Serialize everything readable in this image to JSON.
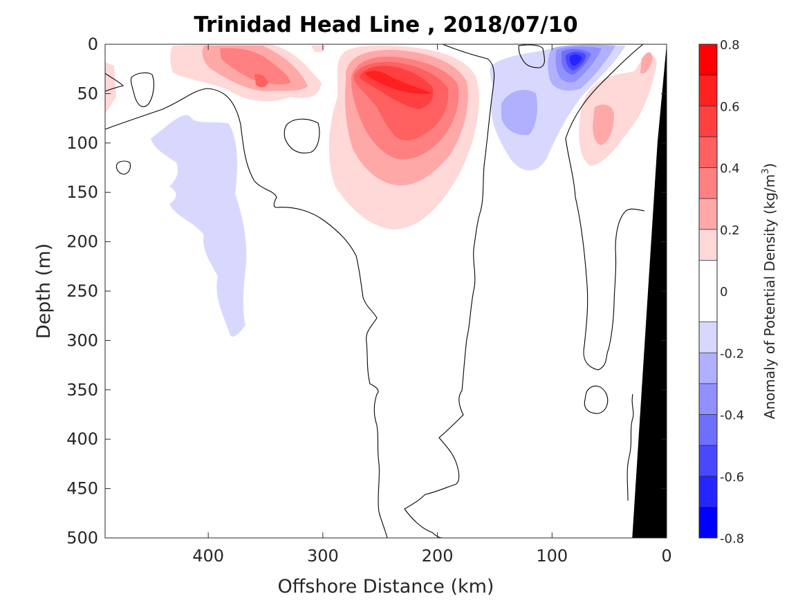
{
  "chart_data": {
    "type": "heatmap",
    "title": "Trinidad Head Line , 2018/07/10",
    "xlabel": "Offshore Distance (km)",
    "ylabel": "Depth (m)",
    "xlim": [
      490,
      0
    ],
    "ylim": [
      0,
      500
    ],
    "x_reversed": true,
    "y_reversed": true,
    "xticks": [
      "400",
      "300",
      "200",
      "100",
      "0"
    ],
    "yticks": [
      "0",
      "50",
      "100",
      "150",
      "200",
      "250",
      "300",
      "350",
      "400",
      "450",
      "500"
    ],
    "colorbar": {
      "label": "Anomaly of Potential Density (kg/m",
      "label_superscript": "3",
      "label_close": ")",
      "ticks": [
        "0.8",
        "0.6",
        "0.4",
        "0.2",
        "0",
        "-0.2",
        "-0.4",
        "-0.6",
        "-0.8"
      ],
      "clim": [
        -0.8,
        0.8
      ],
      "levels": [
        {
          "min": 0.7,
          "max": 0.8,
          "color": "#ff0000"
        },
        {
          "min": 0.6,
          "max": 0.7,
          "color": "#ff2020"
        },
        {
          "min": 0.5,
          "max": 0.6,
          "color": "#ff4040"
        },
        {
          "min": 0.4,
          "max": 0.5,
          "color": "#ff6060"
        },
        {
          "min": 0.3,
          "max": 0.4,
          "color": "#ff8080"
        },
        {
          "min": 0.2,
          "max": 0.3,
          "color": "#ffa8a8"
        },
        {
          "min": 0.1,
          "max": 0.2,
          "color": "#ffd8d8"
        },
        {
          "min": -0.1,
          "max": 0.1,
          "color": "#ffffff"
        },
        {
          "min": -0.2,
          "max": -0.1,
          "color": "#d8d8ff"
        },
        {
          "min": -0.3,
          "max": -0.2,
          "color": "#b0b0ff"
        },
        {
          "min": -0.4,
          "max": -0.3,
          "color": "#9090ff"
        },
        {
          "min": -0.5,
          "max": -0.4,
          "color": "#6e6eff"
        },
        {
          "min": -0.6,
          "max": -0.5,
          "color": "#4848ff"
        },
        {
          "min": -0.7,
          "max": -0.6,
          "color": "#2525ff"
        },
        {
          "min": -0.8,
          "max": -0.7,
          "color": "#0000ff"
        }
      ]
    },
    "features": [
      {
        "name": "positive-anomaly-core",
        "center_x_km": 235,
        "center_depth_m": 60,
        "peak": 0.55,
        "spread_x_km": 55,
        "spread_depth_m": 70
      },
      {
        "name": "positive-anomaly-shallow",
        "center_x_km": 355,
        "center_depth_m": 30,
        "peak": 0.45,
        "spread_x_km": 40,
        "spread_depth_m": 30
      },
      {
        "name": "negative-anomaly-nearshore",
        "center_x_km": 80,
        "center_depth_m": 15,
        "peak": -0.7,
        "spread_x_km": 30,
        "spread_depth_m": 35
      },
      {
        "name": "negative-anomaly-offshore",
        "center_x_km": 405,
        "center_depth_m": 160,
        "peak": -0.15,
        "spread_x_km": 35,
        "spread_depth_m": 100
      },
      {
        "name": "positive-anomaly-coastal",
        "center_x_km": 45,
        "center_depth_m": 90,
        "peak": 0.25,
        "spread_x_km": 25,
        "spread_depth_m": 50
      }
    ],
    "seafloor": [
      [
        0,
        0
      ],
      [
        8,
        100
      ],
      [
        30,
        500
      ]
    ],
    "grid": false
  }
}
